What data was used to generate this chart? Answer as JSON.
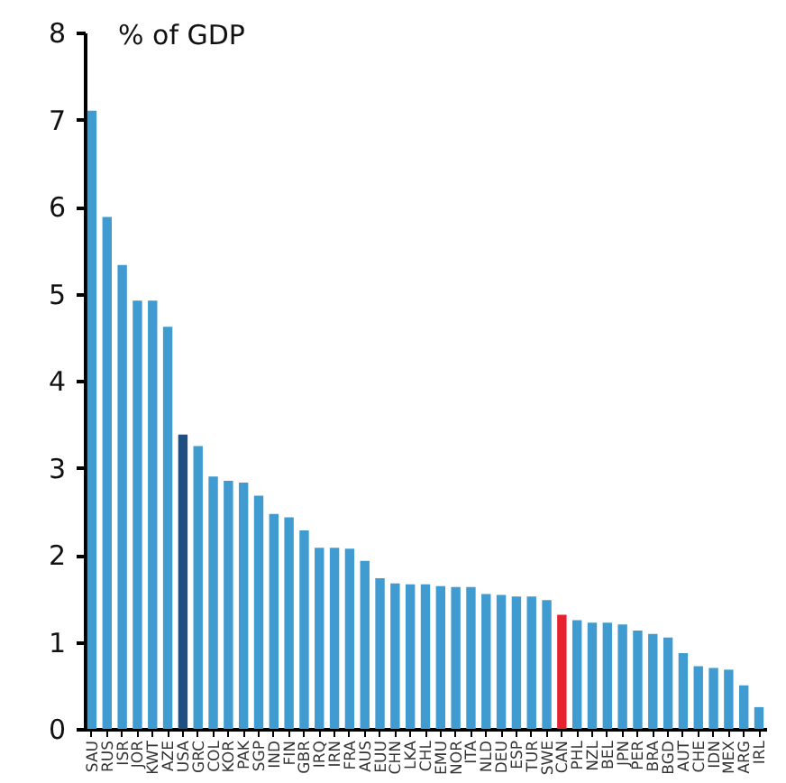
{
  "chart_data": {
    "type": "bar",
    "ylabel": "% of GDP",
    "categories": [
      "SAU",
      "RUS",
      "ISR",
      "JOR",
      "KWT",
      "AZE",
      "USA",
      "GRC",
      "COL",
      "KOR",
      "PAK",
      "SGP",
      "IND",
      "FIN",
      "GBR",
      "IRQ",
      "IRN",
      "FRA",
      "AUS",
      "EUU",
      "CHN",
      "LKA",
      "CHL",
      "EMU",
      "NOR",
      "ITA",
      "NLD",
      "DEU",
      "ESP",
      "TUR",
      "SWE",
      "CAN",
      "PHL",
      "NZL",
      "BEL",
      "JPN",
      "PER",
      "BRA",
      "BGD",
      "AUT",
      "CHE",
      "IDN",
      "MEX",
      "ARG",
      "IRL"
    ],
    "values": [
      7.1,
      5.88,
      5.33,
      4.92,
      4.92,
      4.62,
      3.38,
      3.25,
      2.9,
      2.85,
      2.83,
      2.68,
      2.47,
      2.43,
      2.28,
      2.08,
      2.08,
      2.07,
      1.93,
      1.73,
      1.67,
      1.66,
      1.66,
      1.64,
      1.63,
      1.63,
      1.55,
      1.54,
      1.52,
      1.52,
      1.48,
      1.31,
      1.25,
      1.22,
      1.22,
      1.2,
      1.13,
      1.09,
      1.05,
      0.87,
      0.72,
      0.7,
      0.68,
      0.5,
      0.25
    ],
    "colors": [
      "#3f9bd0",
      "#3f9bd0",
      "#3f9bd0",
      "#3f9bd0",
      "#3f9bd0",
      "#3f9bd0",
      "#1f4e80",
      "#3f9bd0",
      "#3f9bd0",
      "#3f9bd0",
      "#3f9bd0",
      "#3f9bd0",
      "#3f9bd0",
      "#3f9bd0",
      "#3f9bd0",
      "#3f9bd0",
      "#3f9bd0",
      "#3f9bd0",
      "#3f9bd0",
      "#3f9bd0",
      "#3f9bd0",
      "#3f9bd0",
      "#3f9bd0",
      "#3f9bd0",
      "#3f9bd0",
      "#3f9bd0",
      "#3f9bd0",
      "#3f9bd0",
      "#3f9bd0",
      "#3f9bd0",
      "#3f9bd0",
      "#e8212e",
      "#3f9bd0",
      "#3f9bd0",
      "#3f9bd0",
      "#3f9bd0",
      "#3f9bd0",
      "#3f9bd0",
      "#3f9bd0",
      "#3f9bd0",
      "#3f9bd0",
      "#3f9bd0",
      "#3f9bd0",
      "#3f9bd0",
      "#3f9bd0"
    ],
    "ylim": [
      0,
      8
    ],
    "yticks": [
      0,
      1,
      2,
      3,
      4,
      5,
      6,
      7,
      8
    ]
  }
}
